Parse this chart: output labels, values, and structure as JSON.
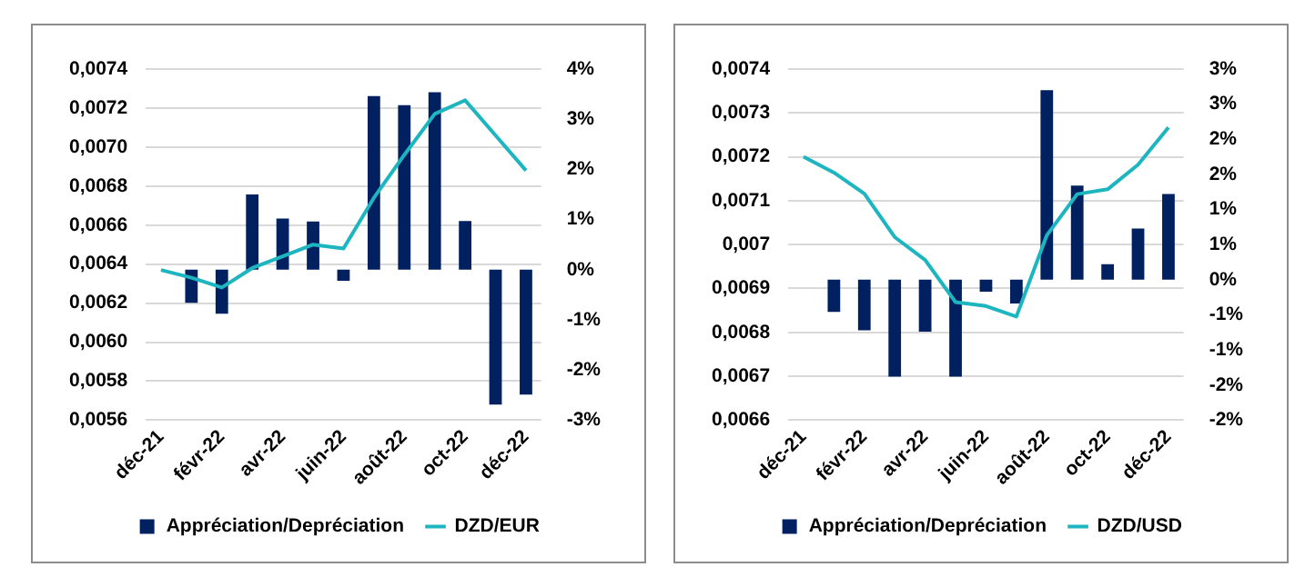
{
  "chart_data": [
    {
      "type": "bar",
      "categories": [
        "déc-21",
        null,
        "févr-22",
        null,
        "avr-22",
        null,
        "juin-22",
        null,
        "août-22",
        null,
        "oct-22",
        null,
        "déc-22"
      ],
      "series": [
        {
          "name": "Appréciation/Depréciation",
          "axis": "y2",
          "color": "#002060",
          "values": [
            null,
            -0.66,
            -0.88,
            1.5,
            1.02,
            0.96,
            -0.22,
            3.46,
            3.28,
            3.54,
            0.97,
            -2.69,
            -2.49
          ]
        },
        {
          "name": "DZD/EUR",
          "type": "line",
          "color": "#1db5bf",
          "values": [
            0.00637,
            0.00633,
            0.00628,
            0.00638,
            0.00644,
            0.0065,
            0.00648,
            0.00674,
            0.00696,
            0.00717,
            0.00724,
            0.00706,
            0.00688
          ]
        }
      ],
      "ylim": [
        0.0056,
        0.0074
      ],
      "yticks": [
        {
          "value": 0.0056,
          "label": "0,0056"
        },
        {
          "value": 0.0058,
          "label": "0,0058"
        },
        {
          "value": 0.006,
          "label": "0,0060"
        },
        {
          "value": 0.0062,
          "label": "0,0062"
        },
        {
          "value": 0.0064,
          "label": "0,0064"
        },
        {
          "value": 0.0066,
          "label": "0,0066"
        },
        {
          "value": 0.0068,
          "label": "0,0068"
        },
        {
          "value": 0.007,
          "label": "0,0070"
        },
        {
          "value": 0.0072,
          "label": "0,0072"
        },
        {
          "value": 0.0074,
          "label": "0,0074"
        }
      ],
      "y2lim": [
        -3,
        4
      ],
      "y2ticks": [
        {
          "value": -3,
          "label": "-3%"
        },
        {
          "value": -2,
          "label": "-2%"
        },
        {
          "value": -1,
          "label": "-1%"
        },
        {
          "value": 0,
          "label": "0%"
        },
        {
          "value": 1,
          "label": "1%"
        },
        {
          "value": 2,
          "label": "2%"
        },
        {
          "value": 3,
          "label": "3%"
        },
        {
          "value": 4,
          "label": "4%"
        }
      ],
      "grid": "y",
      "legend": "bottom",
      "marker": "none",
      "line_style": "solid"
    },
    {
      "type": "bar",
      "categories": [
        "déc-21",
        null,
        "févr-22",
        null,
        "avr-22",
        null,
        "juin-22",
        null,
        "août-22",
        null,
        "oct-22",
        null,
        "déc-22"
      ],
      "series": [
        {
          "name": "Appréciation/Depréciation",
          "axis": "y2",
          "color": "#002060",
          "values": [
            null,
            -0.46,
            -0.72,
            -1.38,
            -0.74,
            -1.38,
            -0.17,
            -0.34,
            2.7,
            1.34,
            0.22,
            0.73,
            1.22
          ]
        },
        {
          "name": "DZD/USD",
          "type": "line",
          "color": "#1db5bf",
          "values": [
            0.0072,
            0.007164,
            0.007116,
            0.007017,
            0.006965,
            0.006869,
            0.00686,
            0.006836,
            0.007021,
            0.007115,
            0.007126,
            0.007182,
            0.007267
          ]
        }
      ],
      "ylim": [
        0.0066,
        0.0074
      ],
      "yticks": [
        {
          "value": 0.0066,
          "label": "0,0066"
        },
        {
          "value": 0.0067,
          "label": "0,0067"
        },
        {
          "value": 0.0068,
          "label": "0,0068"
        },
        {
          "value": 0.0069,
          "label": "0,0069"
        },
        {
          "value": 0.007,
          "label": "0,007"
        },
        {
          "value": 0.0071,
          "label": "0,0071"
        },
        {
          "value": 0.0072,
          "label": "0,0072"
        },
        {
          "value": 0.0073,
          "label": "0,0073"
        },
        {
          "value": 0.0074,
          "label": "0,0074"
        }
      ],
      "y2lim": [
        -2,
        3
      ],
      "y2ticks": [
        {
          "value": -2,
          "label": "-2%"
        },
        {
          "value": -1.5,
          "label": "-2%"
        },
        {
          "value": -1,
          "label": "-1%"
        },
        {
          "value": -0.5,
          "label": "-1%"
        },
        {
          "value": 0,
          "label": "0%"
        },
        {
          "value": 0.5,
          "label": "1%"
        },
        {
          "value": 1,
          "label": "1%"
        },
        {
          "value": 1.5,
          "label": "2%"
        },
        {
          "value": 2,
          "label": "2%"
        },
        {
          "value": 2.5,
          "label": "3%"
        },
        {
          "value": 3,
          "label": "3%"
        }
      ],
      "grid": "y",
      "legend": "bottom",
      "marker": "none",
      "line_style": "solid"
    }
  ]
}
